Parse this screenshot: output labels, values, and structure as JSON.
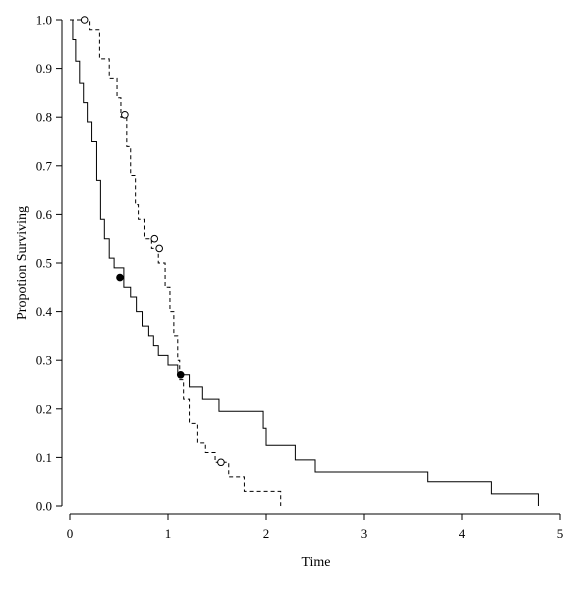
{
  "chart_data": {
    "type": "line",
    "chart_kind": "kaplan-meier step plot",
    "title": "",
    "xlabel": "Time",
    "ylabel": "Propotion Surviving",
    "xlim": [
      0,
      5
    ],
    "ylim": [
      0,
      1
    ],
    "x_ticks": [
      0,
      1,
      2,
      3,
      4,
      5
    ],
    "x_tick_labels": [
      "0",
      "1",
      "2",
      "3",
      "4",
      "5"
    ],
    "y_ticks": [
      0,
      0.1,
      0.2,
      0.3,
      0.4,
      0.5,
      0.6,
      0.7,
      0.8,
      0.9,
      1.0
    ],
    "y_tick_labels": [
      "0.0",
      "0.1",
      "0.2",
      "0.3",
      "0.4",
      "0.5",
      "0.6",
      "0.7",
      "0.8",
      "0.9",
      "1.0"
    ],
    "grid": false,
    "legend": "none",
    "series": [
      {
        "style": "solid",
        "color": "#000000",
        "censor_marker": "filled-circle",
        "x": [
          0,
          0.03,
          0.06,
          0.1,
          0.14,
          0.18,
          0.22,
          0.27,
          0.31,
          0.35,
          0.4,
          0.45,
          0.55,
          0.62,
          0.68,
          0.74,
          0.8,
          0.85,
          0.9,
          1.0,
          1.1,
          1.22,
          1.35,
          1.52,
          1.97,
          2.0,
          2.3,
          2.5,
          3.65,
          4.3,
          4.78
        ],
        "y": [
          1.0,
          0.96,
          0.915,
          0.87,
          0.83,
          0.79,
          0.75,
          0.67,
          0.59,
          0.55,
          0.51,
          0.49,
          0.45,
          0.43,
          0.4,
          0.37,
          0.35,
          0.33,
          0.31,
          0.29,
          0.27,
          0.245,
          0.22,
          0.195,
          0.16,
          0.125,
          0.095,
          0.07,
          0.05,
          0.025,
          0.0
        ],
        "censored": [
          {
            "x": 0.51,
            "y": 0.47
          },
          {
            "x": 1.13,
            "y": 0.27
          }
        ]
      },
      {
        "style": "dashed",
        "color": "#000000",
        "censor_marker": "open-circle",
        "x": [
          0,
          0.2,
          0.3,
          0.4,
          0.48,
          0.52,
          0.58,
          0.62,
          0.67,
          0.7,
          0.76,
          0.83,
          0.9,
          0.97,
          1.02,
          1.06,
          1.1,
          1.12,
          1.16,
          1.22,
          1.3,
          1.38,
          1.48,
          1.62,
          1.78,
          2.15
        ],
        "y": [
          1.0,
          0.98,
          0.92,
          0.88,
          0.84,
          0.8,
          0.74,
          0.68,
          0.62,
          0.59,
          0.55,
          0.53,
          0.5,
          0.45,
          0.4,
          0.35,
          0.3,
          0.26,
          0.22,
          0.17,
          0.13,
          0.11,
          0.09,
          0.06,
          0.03,
          0.0
        ],
        "censored": [
          {
            "x": 0.15,
            "y": 1.0
          },
          {
            "x": 0.56,
            "y": 0.805
          },
          {
            "x": 0.86,
            "y": 0.55
          },
          {
            "x": 0.91,
            "y": 0.53
          },
          {
            "x": 1.54,
            "y": 0.09
          }
        ]
      }
    ]
  }
}
